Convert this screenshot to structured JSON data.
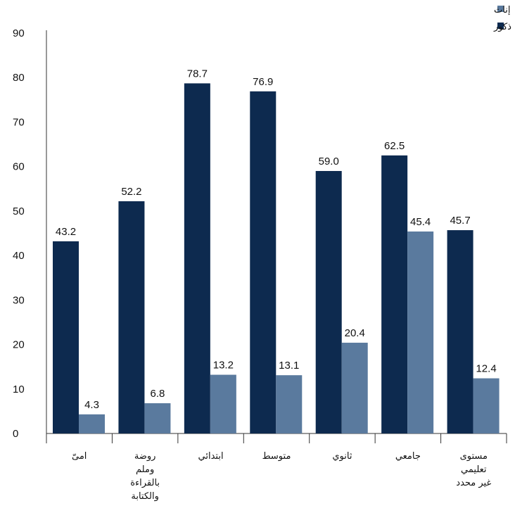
{
  "chart_data": {
    "type": "bar",
    "categories": [
      [
        "امیّ"
      ],
      [
        "روضة",
        "وملم",
        "بالقراءة",
        "والكتابة"
      ],
      [
        "ابتدائي"
      ],
      [
        "متوسط"
      ],
      [
        "ثانوي"
      ],
      [
        "جامعي"
      ],
      [
        "مستوى",
        "تعليمي",
        "غير محدد"
      ]
    ],
    "series": [
      {
        "name": "ذكور",
        "color": "#0d2a4f",
        "values": [
          43.2,
          52.2,
          78.7,
          76.9,
          59.0,
          62.5,
          45.7
        ]
      },
      {
        "name": "إناث",
        "color": "#5a7a9e",
        "values": [
          4.3,
          6.8,
          13.2,
          13.1,
          20.4,
          45.4,
          12.4
        ]
      }
    ],
    "value_labels": {
      "ذكور": [
        "43.2",
        "52.2",
        "78.7",
        "76.9",
        "59.0",
        "62.5",
        "45.7"
      ],
      "إناث": [
        "4.3",
        "6.8",
        "13.2",
        "13.1",
        "20.4",
        "45.4",
        "12.4"
      ]
    },
    "y_ticks": [
      "0",
      "10",
      "20",
      "30",
      "40",
      "50",
      "60",
      "70",
      "80",
      "90"
    ],
    "ylim": [
      0,
      90
    ],
    "grid": false,
    "legend": {
      "position": "top-right",
      "order": [
        "إناث",
        "ذكور"
      ]
    },
    "title": "",
    "xlabel": "",
    "ylabel": ""
  }
}
